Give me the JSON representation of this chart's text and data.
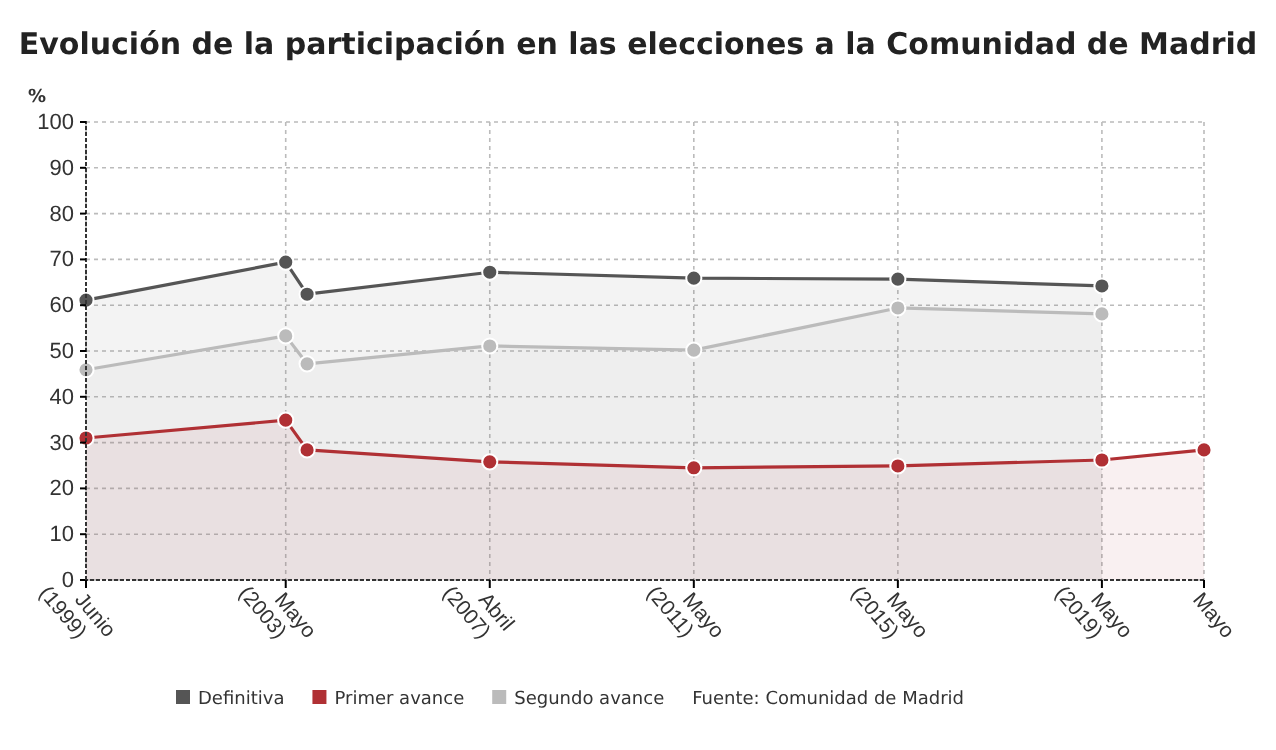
{
  "chart_data": {
    "type": "area",
    "title": "Evolución de la participación en las elecciones a la Comunidad de Madrid",
    "ylabel": "%",
    "x": [
      "1999-06",
      "2003-05",
      "2003-10",
      "2007-05",
      "2011-05",
      "2015-05",
      "2019-05",
      "2021-05"
    ],
    "xlim": [
      "1999-06",
      "2021-05"
    ],
    "xticks": [
      {
        "value": "1999-06",
        "label": "Junio\n(1999)"
      },
      {
        "value": "2003-05",
        "label": "Mayo\n(2003)"
      },
      {
        "value": "2007-05",
        "label": "Abril\n(2007)"
      },
      {
        "value": "2011-05",
        "label": "Mayo\n(2011)"
      },
      {
        "value": "2015-05",
        "label": "Mayo\n(2015)"
      },
      {
        "value": "2019-05",
        "label": "Mayo\n(2019)"
      },
      {
        "value": "2021-05",
        "label": "Mayo"
      }
    ],
    "ylim": [
      0,
      100
    ],
    "yticks": [
      0,
      10,
      20,
      30,
      40,
      50,
      60,
      70,
      80,
      90,
      100
    ],
    "series": [
      {
        "name": "Definitiva",
        "color": "#555555",
        "values": [
          61.1,
          69.4,
          62.4,
          67.2,
          65.9,
          65.7,
          64.2,
          null
        ]
      },
      {
        "name": "Primer avance",
        "color": "#b03034",
        "values": [
          31.0,
          34.9,
          28.4,
          25.8,
          24.5,
          24.9,
          26.2,
          28.4
        ]
      },
      {
        "name": "Segundo avance",
        "color": "#bbbbbb",
        "values": [
          45.9,
          53.3,
          47.2,
          51.1,
          50.2,
          59.4,
          58.1,
          null
        ]
      }
    ],
    "grid": true,
    "legend": "bottom",
    "marker": "circle",
    "line_style": "solid",
    "annotations": [
      "Fuente: Comunidad de Madrid"
    ]
  }
}
